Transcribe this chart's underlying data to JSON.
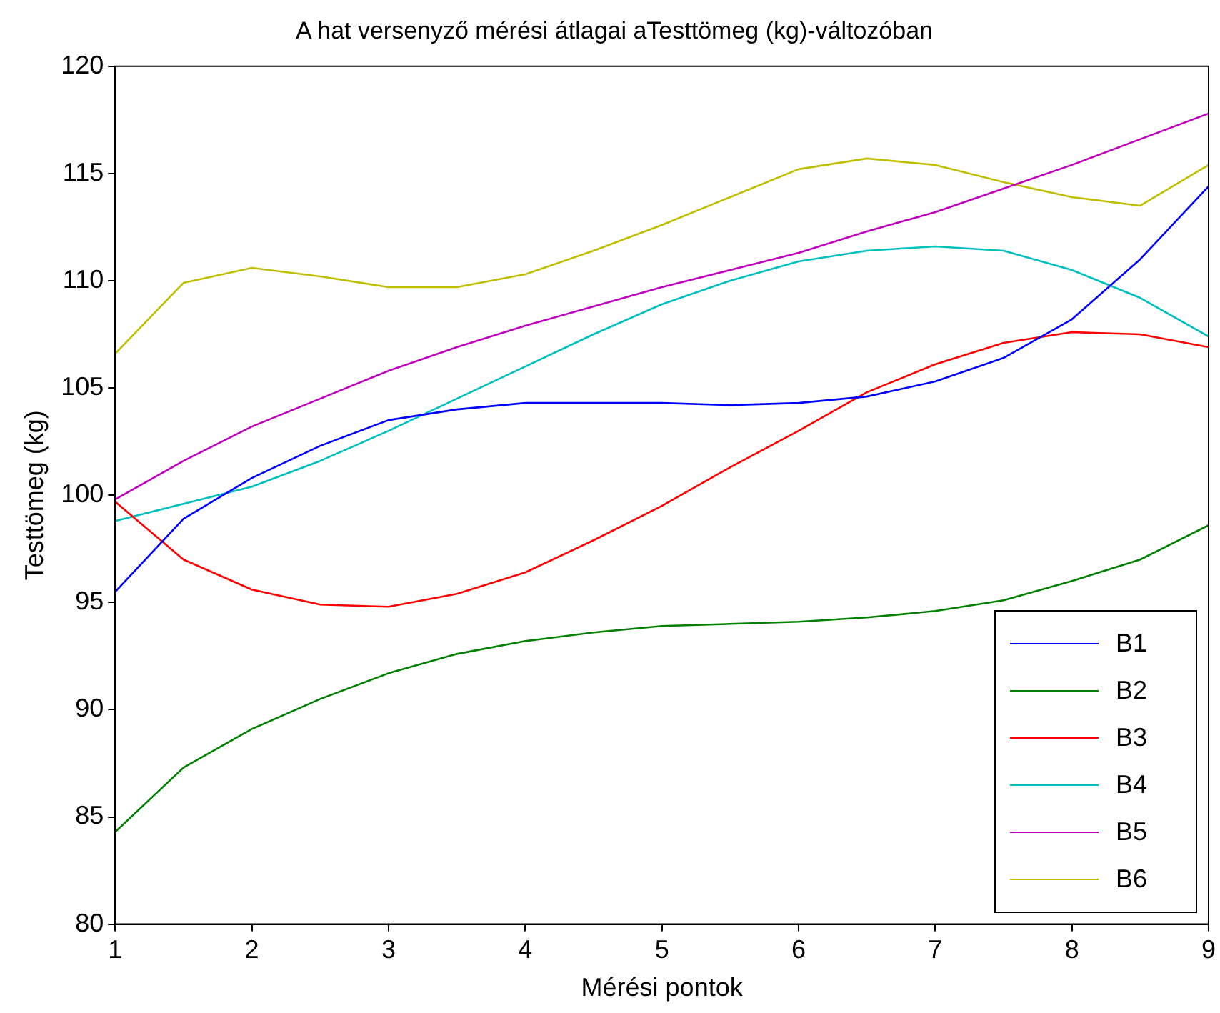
{
  "chart_data": {
    "type": "line",
    "title": "A hat versenyző mérési átlagai aTesttömeg (kg)-változóban",
    "xlabel": "Mérési pontok",
    "ylabel": "Testtömeg (kg)",
    "x": [
      1,
      1.5,
      2,
      2.5,
      3,
      3.5,
      4,
      4.5,
      5,
      5.5,
      6,
      6.5,
      7,
      7.5,
      8,
      8.5,
      9
    ],
    "series": [
      {
        "name": "B1",
        "color": "#0000ff",
        "values": [
          95.5,
          98.9,
          100.8,
          102.3,
          103.5,
          104.0,
          104.3,
          104.3,
          104.3,
          104.2,
          104.3,
          104.6,
          105.3,
          106.4,
          108.2,
          111.0,
          114.4
        ]
      },
      {
        "name": "B2",
        "color": "#008000",
        "values": [
          84.3,
          87.3,
          89.1,
          90.5,
          91.7,
          92.6,
          93.2,
          93.6,
          93.9,
          94.0,
          94.1,
          94.3,
          94.6,
          95.1,
          96.0,
          97.0,
          98.6
        ]
      },
      {
        "name": "B3",
        "color": "#ff0000",
        "values": [
          99.7,
          97.0,
          95.6,
          94.9,
          94.8,
          95.4,
          96.4,
          97.9,
          99.5,
          101.3,
          103.0,
          104.8,
          106.1,
          107.1,
          107.6,
          107.5,
          106.9
        ]
      },
      {
        "name": "B4",
        "color": "#00bfbf",
        "values": [
          98.8,
          99.6,
          100.4,
          101.6,
          103.0,
          104.5,
          106.0,
          107.5,
          108.9,
          110.0,
          110.9,
          111.4,
          111.6,
          111.4,
          110.5,
          109.2,
          107.4
        ]
      },
      {
        "name": "B5",
        "color": "#bf00bf",
        "values": [
          99.8,
          101.6,
          103.2,
          104.5,
          105.8,
          106.9,
          107.9,
          108.8,
          109.7,
          110.5,
          111.3,
          112.3,
          113.2,
          114.3,
          115.4,
          116.6,
          117.8
        ]
      },
      {
        "name": "B6",
        "color": "#bfbf00",
        "values": [
          106.6,
          109.9,
          110.6,
          110.2,
          109.7,
          109.7,
          110.3,
          111.4,
          112.6,
          113.9,
          115.2,
          115.7,
          115.4,
          114.6,
          113.9,
          113.5,
          115.4
        ]
      }
    ],
    "xlim": [
      1,
      9
    ],
    "xticks": [
      1,
      2,
      3,
      4,
      5,
      6,
      7,
      8,
      9
    ],
    "ylim": [
      80,
      120
    ],
    "yticks": [
      80,
      85,
      90,
      95,
      100,
      105,
      110,
      115,
      120
    ],
    "legend": "bottom right",
    "marker": "none",
    "line_style": "solid"
  }
}
